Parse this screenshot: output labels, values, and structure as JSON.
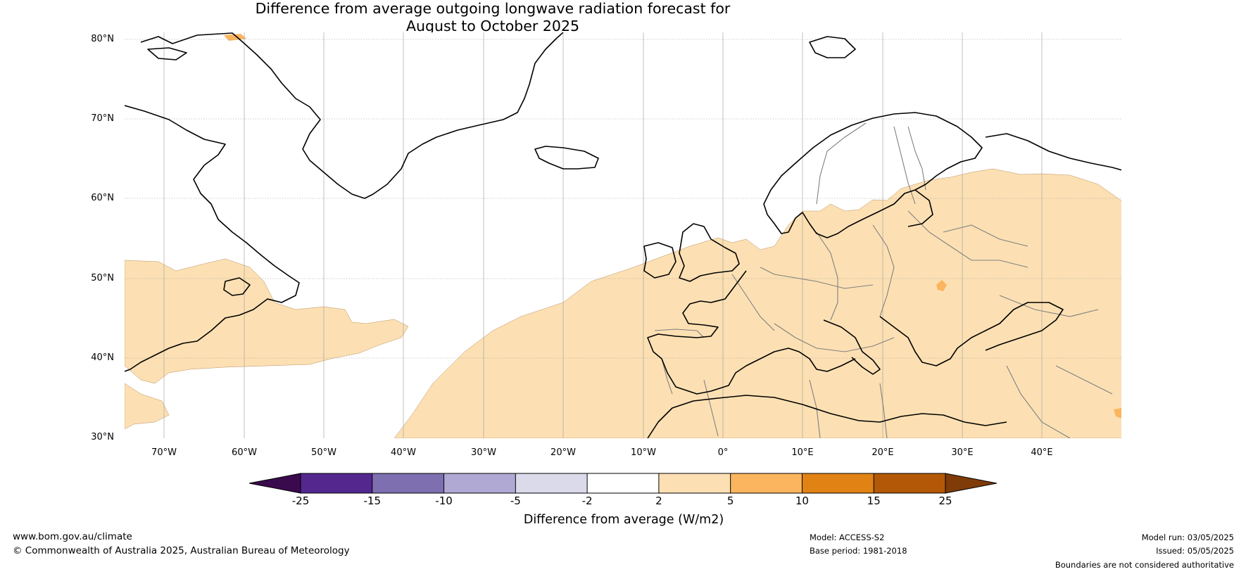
{
  "title": {
    "line1": "Difference from average outgoing longwave radiation forecast for",
    "line2": "August to October 2025"
  },
  "map": {
    "lat_labels": [
      "80°N",
      "70°N",
      "60°N",
      "50°N",
      "40°N",
      "30°N"
    ],
    "lon_labels": [
      "70°W",
      "60°W",
      "50°W",
      "40°W",
      "30°W",
      "20°W",
      "10°W",
      "0°",
      "10°E",
      "20°E",
      "30°E",
      "40°E"
    ],
    "colors": {
      "ocean": "#ffffff",
      "anomaly_2_to_5": "#fce0b3",
      "anomaly_5_to_10": "#fbb55e",
      "coastline": "#000000",
      "borders": "#808080",
      "gridlines": "#999999"
    }
  },
  "legend": {
    "tick_labels": [
      "-25",
      "-15",
      "-10",
      "-5",
      "-2",
      "2",
      "5",
      "10",
      "15",
      "25"
    ],
    "colors": [
      "#3b0a4e",
      "#54278f",
      "#7e6fb0",
      "#b0a9d4",
      "#dadaeb",
      "#ffffff",
      "#fce0b3",
      "#fbb55e",
      "#e08214",
      "#b35806",
      "#7f3b08"
    ],
    "title": "Difference from average (W/m2)"
  },
  "footer": {
    "website": "www.bom.gov.au/climate",
    "copyright": "© Commonwealth of Australia 2025, Australian Bureau of Meteorology",
    "model": "Model: ACCESS-S2",
    "base_period": "Base period: 1981-2018",
    "model_run": "Model run: 03/05/2025",
    "issued": "Issued: 05/05/2025",
    "disclaimer": "Boundaries are not considered authoritative"
  }
}
